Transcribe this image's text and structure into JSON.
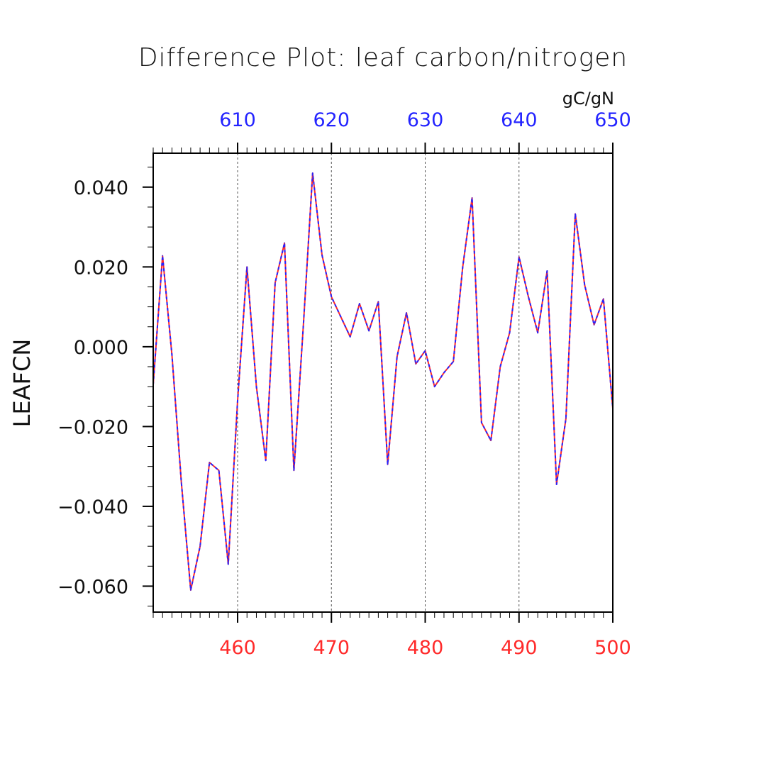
{
  "colors": {
    "background": "#ffffff",
    "axis": "#000000",
    "grid": "#555555",
    "bottom_axis": "#ff2a2a",
    "top_axis": "#2424ff",
    "series_a": "#ff2a2a",
    "series_b": "#2424ff"
  },
  "chart_data": {
    "type": "line",
    "title": "Difference Plot: leaf carbon/nitrogen",
    "units": "gC/gN",
    "ylabel": "LEAFCN",
    "xlabel": "",
    "xlim": [
      451,
      500
    ],
    "ylim": [
      -0.0665,
      0.0485
    ],
    "top_axis_offset": 150,
    "grid": "vertical dashed at labeled top ticks",
    "x_ticks_bottom": [
      460,
      470,
      480,
      490,
      500
    ],
    "x_ticks_top": [
      610,
      620,
      630,
      640,
      650
    ],
    "y_ticks": [
      {
        "value": 0.04,
        "label": "0.040"
      },
      {
        "value": 0.02,
        "label": "0.020"
      },
      {
        "value": 0.0,
        "label": "0.000"
      },
      {
        "value": -0.02,
        "label": "−0.020"
      },
      {
        "value": -0.04,
        "label": "−0.040"
      },
      {
        "value": -0.06,
        "label": "−0.060"
      }
    ],
    "x": [
      451,
      452,
      453,
      454,
      455,
      456,
      457,
      458,
      459,
      460,
      461,
      462,
      463,
      464,
      465,
      466,
      467,
      468,
      469,
      470,
      471,
      472,
      473,
      474,
      475,
      476,
      477,
      478,
      479,
      480,
      481,
      482,
      483,
      484,
      485,
      486,
      487,
      488,
      489,
      490,
      491,
      492,
      493,
      494,
      495,
      496,
      497,
      498,
      499,
      500
    ],
    "series": [
      {
        "values": [
          -0.0095,
          0.0228,
          -0.002,
          -0.034,
          -0.061,
          -0.05,
          -0.029,
          -0.031,
          -0.0545,
          -0.0135,
          0.02,
          -0.01,
          -0.0285,
          0.016,
          0.026,
          -0.031,
          0.005,
          0.0435,
          0.023,
          0.0125,
          0.0075,
          0.0025,
          0.0108,
          0.004,
          0.0113,
          -0.0295,
          -0.0025,
          0.0085,
          -0.0043,
          -0.001,
          -0.01,
          -0.0065,
          -0.0037,
          0.02,
          0.0373,
          -0.019,
          -0.0235,
          -0.005,
          0.0035,
          0.0225,
          0.0125,
          0.0035,
          0.019,
          -0.0345,
          -0.018,
          0.0333,
          0.0155,
          0.0055,
          0.012,
          -0.0155
        ]
      }
    ]
  }
}
